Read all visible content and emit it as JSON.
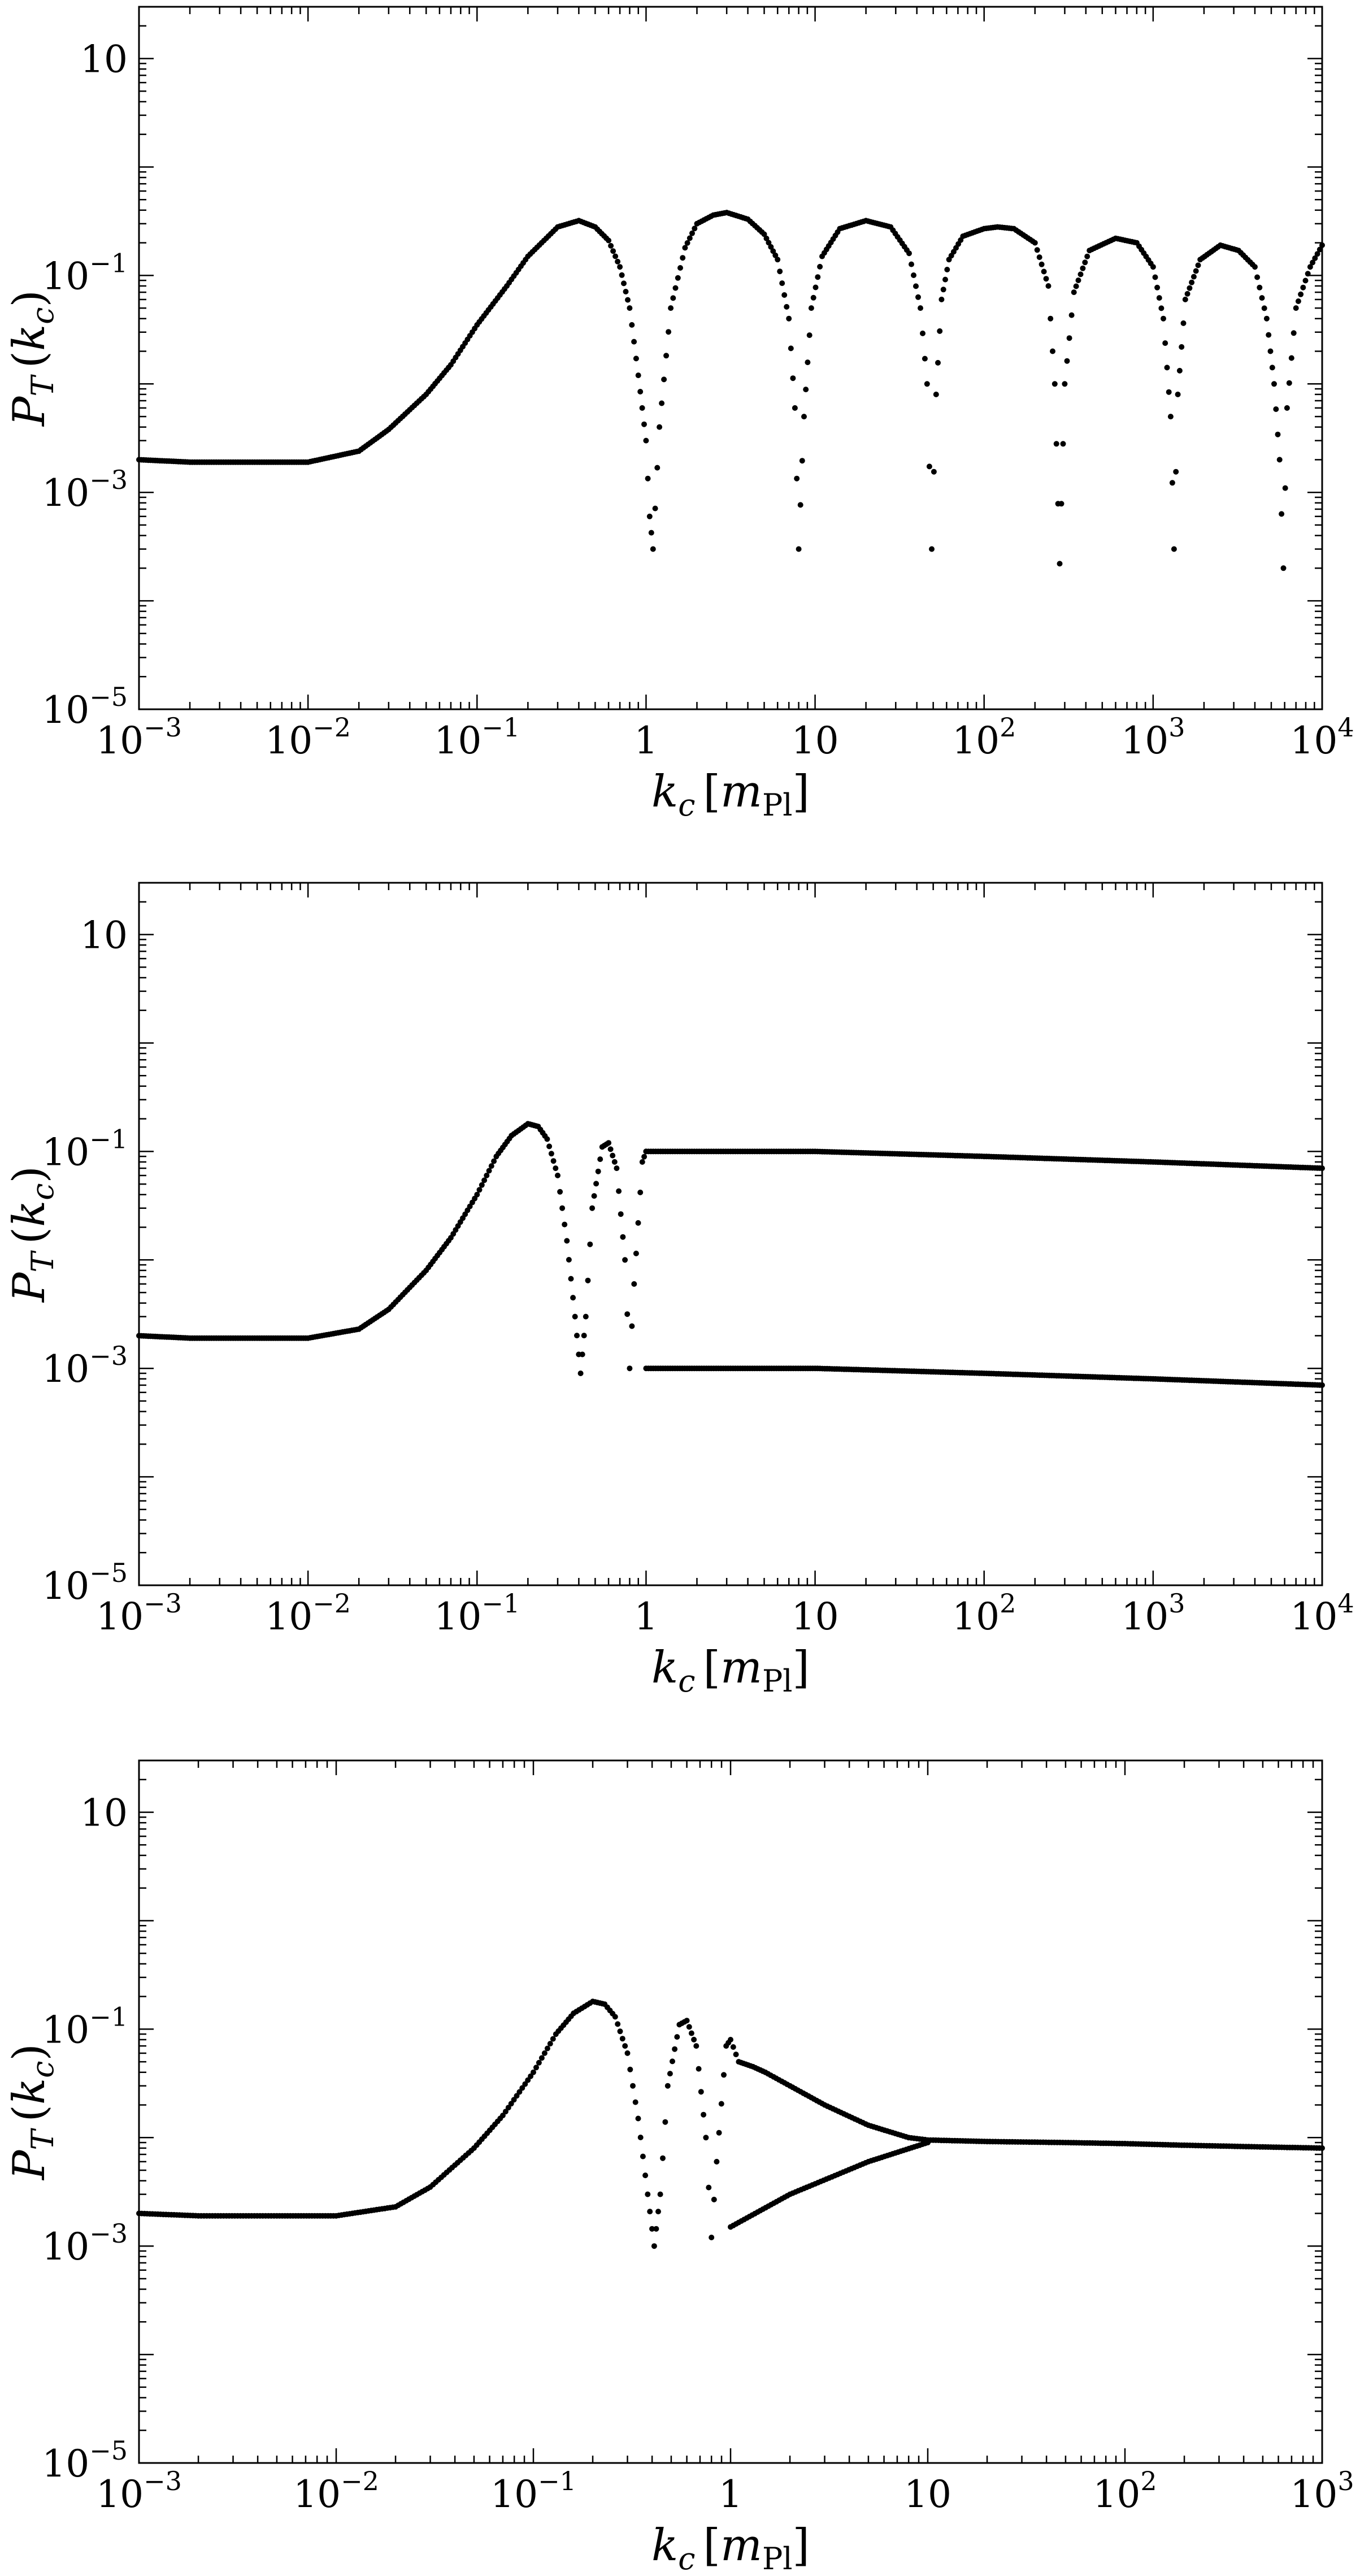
{
  "figure": {
    "panel_count": 3
  },
  "chart_data": [
    {
      "type": "scatter",
      "panel": "top",
      "xscale": "log",
      "yscale": "log",
      "xlim": [
        0.001,
        10000
      ],
      "ylim": [
        1e-05,
        30
      ],
      "xlabel": "k_c [m_Pl]",
      "ylabel": "P_T (k_c)",
      "xticks": [
        {
          "value": 0.001,
          "label": "10^-3"
        },
        {
          "value": 0.01,
          "label": "10^-2"
        },
        {
          "value": 0.1,
          "label": "10^-1"
        },
        {
          "value": 1,
          "label": "1"
        },
        {
          "value": 10,
          "label": "10"
        },
        {
          "value": 100,
          "label": "10^2"
        },
        {
          "value": 1000,
          "label": "10^3"
        },
        {
          "value": 10000,
          "label": "10^4"
        }
      ],
      "yticks": [
        {
          "value": 10,
          "label": "10"
        },
        {
          "value": 0.1,
          "label": "10^-1"
        },
        {
          "value": 0.001,
          "label": "10^-3"
        },
        {
          "value": 1e-05,
          "label": "10^-5"
        }
      ],
      "grid": false,
      "legend": "none",
      "marker_color": "#000000",
      "series": [
        {
          "x": [
            0.001,
            0.002,
            0.005,
            0.01,
            0.02,
            0.03,
            0.05,
            0.07,
            0.1,
            0.15,
            0.2,
            0.3,
            0.4,
            0.5,
            0.6,
            0.7,
            0.8,
            0.9,
            1.0,
            1.05,
            1.1,
            1.2,
            1.4,
            1.7,
            2.0,
            2.5,
            3.0,
            4.0,
            5.0,
            6.0,
            7.0,
            7.6,
            8.0,
            8.6,
            9.5,
            11,
            14,
            20,
            28,
            36,
            42,
            46,
            49,
            52,
            56,
            62,
            75,
            100,
            120,
            150,
            200,
            240,
            262,
            280,
            300,
            340,
            420,
            600,
            800,
            1000,
            1150,
            1270,
            1330,
            1400,
            1550,
            1900,
            2500,
            3200,
            4000,
            4700,
            5200,
            5600,
            5900,
            6200,
            7000,
            8500,
            10000
          ],
          "y": [
            0.002,
            0.0019,
            0.0019,
            0.0019,
            0.0024,
            0.0038,
            0.008,
            0.015,
            0.035,
            0.08,
            0.15,
            0.28,
            0.32,
            0.28,
            0.21,
            0.12,
            0.05,
            0.012,
            0.003,
            0.0006,
            0.0003,
            0.004,
            0.05,
            0.18,
            0.3,
            0.36,
            0.38,
            0.33,
            0.24,
            0.14,
            0.04,
            0.006,
            0.0003,
            0.005,
            0.05,
            0.15,
            0.27,
            0.32,
            0.28,
            0.16,
            0.05,
            0.01,
            0.0003,
            0.008,
            0.06,
            0.14,
            0.23,
            0.27,
            0.28,
            0.27,
            0.2,
            0.08,
            0.01,
            0.00022,
            0.01,
            0.07,
            0.17,
            0.22,
            0.2,
            0.12,
            0.04,
            0.005,
            0.0003,
            0.008,
            0.06,
            0.14,
            0.19,
            0.17,
            0.12,
            0.04,
            0.01,
            0.002,
            0.0002,
            0.006,
            0.05,
            0.12,
            0.19
          ]
        }
      ]
    },
    {
      "type": "scatter",
      "panel": "middle",
      "xscale": "log",
      "yscale": "log",
      "xlim": [
        0.001,
        10000
      ],
      "ylim": [
        1e-05,
        30
      ],
      "xlabel": "k_c [m_Pl]",
      "ylabel": "P_T (k_c)",
      "xticks": [
        {
          "value": 0.001,
          "label": "10^-3"
        },
        {
          "value": 0.01,
          "label": "10^-2"
        },
        {
          "value": 0.1,
          "label": "10^-1"
        },
        {
          "value": 1,
          "label": "1"
        },
        {
          "value": 10,
          "label": "10"
        },
        {
          "value": 100,
          "label": "10^2"
        },
        {
          "value": 1000,
          "label": "10^3"
        },
        {
          "value": 10000,
          "label": "10^4"
        }
      ],
      "yticks": [
        {
          "value": 10,
          "label": "10"
        },
        {
          "value": 0.1,
          "label": "10^-1"
        },
        {
          "value": 0.001,
          "label": "10^-3"
        },
        {
          "value": 1e-05,
          "label": "10^-5"
        }
      ],
      "grid": false,
      "legend": "none",
      "marker_color": "#000000",
      "series": [
        {
          "x": [
            0.001,
            0.002,
            0.005,
            0.01,
            0.02,
            0.03,
            0.05,
            0.07,
            0.1,
            0.13,
            0.16,
            0.2,
            0.23,
            0.26,
            0.3,
            0.34,
            0.38,
            0.41,
            0.44,
            0.48,
            0.55,
            0.6,
            0.67,
            0.75,
            0.8,
            0.85,
            0.95,
            1.0
          ],
          "y": [
            0.002,
            0.0019,
            0.0019,
            0.0019,
            0.0023,
            0.0035,
            0.008,
            0.016,
            0.04,
            0.09,
            0.14,
            0.18,
            0.17,
            0.13,
            0.06,
            0.015,
            0.003,
            0.0009,
            0.003,
            0.03,
            0.11,
            0.12,
            0.07,
            0.01,
            0.001,
            0.006,
            0.08,
            0.1
          ]
        },
        {
          "x": [
            1,
            10,
            100,
            1000,
            10000
          ],
          "y": [
            0.1,
            0.1,
            0.09,
            0.08,
            0.07
          ],
          "note_band": "upper envelope"
        },
        {
          "x": [
            1,
            10,
            100,
            1000,
            10000
          ],
          "y": [
            0.001,
            0.001,
            0.0009,
            0.0008,
            0.0007
          ],
          "note_band": "lower envelope"
        }
      ]
    },
    {
      "type": "scatter",
      "panel": "bottom",
      "xscale": "log",
      "yscale": "log",
      "xlim": [
        0.001,
        1000
      ],
      "ylim": [
        1e-05,
        30
      ],
      "xlabel": "k_c [m_Pl]",
      "ylabel": "P_T (k_c)",
      "xticks": [
        {
          "value": 0.001,
          "label": "10^-3"
        },
        {
          "value": 0.01,
          "label": "10^-2"
        },
        {
          "value": 0.1,
          "label": "10^-1"
        },
        {
          "value": 1,
          "label": "1"
        },
        {
          "value": 10,
          "label": "10"
        },
        {
          "value": 100,
          "label": "10^2"
        },
        {
          "value": 1000,
          "label": "10^3"
        }
      ],
      "yticks": [
        {
          "value": 10,
          "label": "10"
        },
        {
          "value": 0.1,
          "label": "10^-1"
        },
        {
          "value": 0.001,
          "label": "10^-3"
        },
        {
          "value": 1e-05,
          "label": "10^-5"
        }
      ],
      "grid": false,
      "legend": "none",
      "marker_color": "#000000",
      "series": [
        {
          "x": [
            0.001,
            0.002,
            0.005,
            0.01,
            0.02,
            0.03,
            0.05,
            0.07,
            0.1,
            0.13,
            0.16,
            0.2,
            0.23,
            0.26,
            0.3,
            0.34,
            0.38,
            0.41,
            0.44,
            0.48,
            0.55,
            0.6,
            0.67,
            0.75,
            0.8,
            0.85,
            0.95,
            1.0,
            1.1,
            1.3,
            1.5,
            2,
            3,
            5,
            8,
            10,
            20,
            50,
            100,
            200,
            500,
            1000
          ],
          "y": [
            0.002,
            0.0019,
            0.0019,
            0.0019,
            0.0023,
            0.0035,
            0.008,
            0.016,
            0.04,
            0.09,
            0.14,
            0.18,
            0.17,
            0.13,
            0.06,
            0.015,
            0.003,
            0.001,
            0.003,
            0.03,
            0.11,
            0.12,
            0.07,
            0.01,
            0.0012,
            0.006,
            0.07,
            0.08,
            0.05,
            0.045,
            0.04,
            0.03,
            0.02,
            0.013,
            0.01,
            0.0095,
            0.0092,
            0.009,
            0.0088,
            0.0085,
            0.0082,
            0.008
          ]
        },
        {
          "x": [
            1,
            2,
            5,
            10
          ],
          "y": [
            0.0015,
            0.003,
            0.006,
            0.009
          ],
          "note_band": "lower envelope"
        }
      ]
    }
  ]
}
